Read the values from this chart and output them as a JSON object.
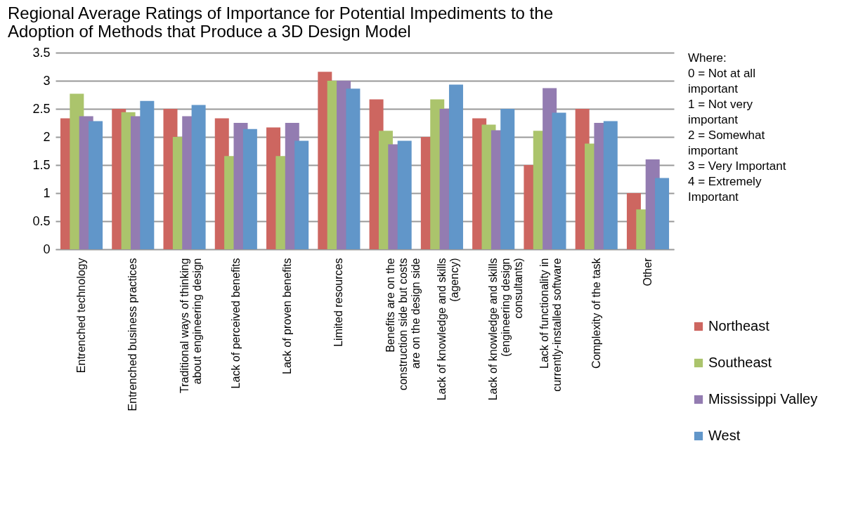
{
  "chart_data": {
    "type": "bar",
    "title": "Regional Average Ratings of Importance for Potential Impediments to the Adoption of Methods that Produce a 3D Design Model",
    "categories": [
      "Entrenched technology",
      "Entrenched business practices",
      "Traditional ways of thinking about engineering design",
      "Lack of perceived benefits",
      "Lack of proven benefits",
      "Limited resources",
      "Benefits are on the construction side but costs are on the design side",
      "Lack of knowledge and skills (agency)",
      "Lack of knowledge and skills (engineering design consultants)",
      "Lack of functionality in currently-installed software",
      "Complexity of the task",
      "Other"
    ],
    "series": [
      {
        "name": "Northeast",
        "color": "#cd6660",
        "values": [
          2.33,
          2.5,
          2.5,
          2.33,
          2.17,
          3.16,
          2.67,
          2.0,
          2.33,
          1.5,
          2.5,
          1.0
        ]
      },
      {
        "name": "Southeast",
        "color": "#abc46c",
        "values": [
          2.77,
          2.44,
          2.0,
          1.66,
          1.66,
          3.0,
          2.11,
          2.67,
          2.22,
          2.11,
          1.88,
          0.71
        ]
      },
      {
        "name": "Mississippi Valley",
        "color": "#937cb1",
        "values": [
          2.37,
          2.37,
          2.37,
          2.25,
          2.25,
          3.0,
          1.87,
          2.5,
          2.12,
          2.87,
          2.25,
          1.6
        ]
      },
      {
        "name": "West",
        "color": "#6196c9",
        "values": [
          2.28,
          2.64,
          2.57,
          2.14,
          1.93,
          2.86,
          1.93,
          2.93,
          2.5,
          2.43,
          2.28,
          1.27
        ]
      }
    ],
    "ylim": [
      0,
      3.5
    ],
    "yticks": [
      0,
      0.5,
      1,
      1.5,
      2,
      2.5,
      3,
      3.5
    ],
    "grid": "y",
    "legend": "bottom right",
    "annotations": [
      "Where:",
      "0 = Not at all important",
      "1 = Not very important",
      "2 = Somewhat important",
      "3 = Very Important",
      "4 = Extremely Important"
    ]
  }
}
